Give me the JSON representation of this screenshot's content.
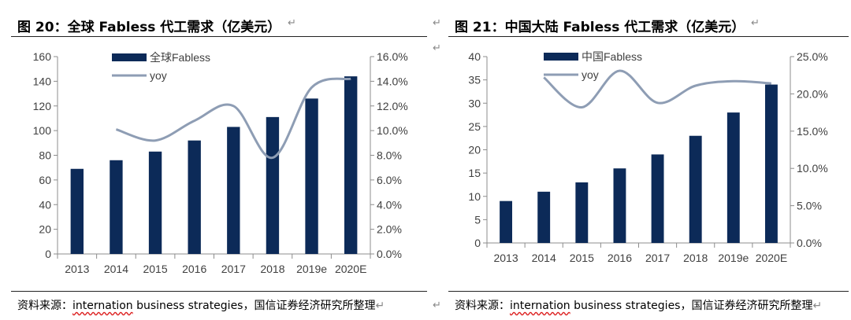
{
  "charts": [
    {
      "figure_title": "图 20：全球 Fabless 代工需求（亿美元）",
      "source": {
        "prefix": "资料来源：",
        "term": "internation",
        "middle": " business strategies，",
        "suffix": "国信证券经济研究所整理"
      },
      "para_mark": "↵"
    },
    {
      "figure_title": "图 21：中国大陆 Fabless 代工需求（亿美元）",
      "source": {
        "prefix": "资料来源：",
        "term": "internation",
        "middle": " business strategies，",
        "suffix": "国信证券经济研究所整理"
      },
      "para_mark": "↵"
    }
  ],
  "misc_marks": [
    "↵",
    "↵",
    "↵"
  ],
  "colors": {
    "bar": "#0c2a58",
    "line": "#8e9db4",
    "axis": "#8c8c8c",
    "text": "#404040"
  },
  "chart_data": [
    {
      "type": "bar",
      "title": "全球Fabless代工需求",
      "categories": [
        "2013",
        "2014",
        "2015",
        "2016",
        "2017",
        "2018",
        "2019e",
        "2020E"
      ],
      "series": [
        {
          "name": "全球Fabless",
          "type": "bar",
          "axis": "left",
          "values": [
            69,
            76,
            83,
            92,
            103,
            111,
            126,
            144
          ]
        },
        {
          "name": "yoy",
          "type": "line",
          "axis": "right",
          "values": [
            null,
            10.1,
            9.2,
            10.8,
            12.0,
            7.8,
            13.5,
            14.2
          ]
        }
      ],
      "ylim": [
        0,
        160
      ],
      "yticks": [
        "0",
        "20",
        "40",
        "60",
        "80",
        "100",
        "120",
        "140",
        "160"
      ],
      "y2lim": [
        0,
        16
      ],
      "y2ticks": [
        "0.0%",
        "2.0%",
        "4.0%",
        "6.0%",
        "8.0%",
        "10.0%",
        "12.0%",
        "14.0%",
        "16.0%"
      ],
      "legend": "top-left"
    },
    {
      "type": "bar",
      "title": "中国大陆Fabless代工需求",
      "categories": [
        "2013",
        "2014",
        "2015",
        "2016",
        "2017",
        "2018",
        "2019e",
        "2020E"
      ],
      "series": [
        {
          "name": "中国Fabless",
          "type": "bar",
          "axis": "left",
          "values": [
            9,
            11,
            13,
            16,
            19,
            23,
            28,
            34
          ]
        },
        {
          "name": "yoy",
          "type": "line",
          "axis": "right",
          "values": [
            null,
            22.2,
            18.2,
            23.1,
            18.8,
            21.1,
            21.7,
            21.4
          ]
        }
      ],
      "ylim": [
        0,
        40
      ],
      "yticks": [
        "0",
        "5",
        "10",
        "15",
        "20",
        "25",
        "30",
        "35",
        "40"
      ],
      "y2lim": [
        0,
        25
      ],
      "y2ticks": [
        "0.0%",
        "5.0%",
        "10.0%",
        "15.0%",
        "20.0%",
        "25.0%"
      ],
      "legend": "top-left"
    }
  ]
}
